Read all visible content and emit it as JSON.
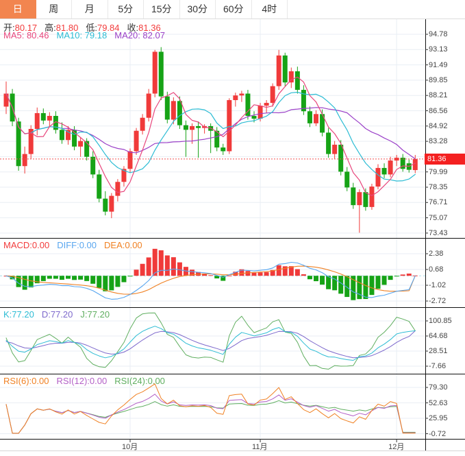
{
  "tabs": {
    "items": [
      {
        "id": "day",
        "label": "日",
        "active": true
      },
      {
        "id": "week",
        "label": "周",
        "active": false
      },
      {
        "id": "month",
        "label": "月",
        "active": false
      },
      {
        "id": "5min",
        "label": "5分",
        "active": false
      },
      {
        "id": "15min",
        "label": "15分",
        "active": false
      },
      {
        "id": "30min",
        "label": "30分",
        "active": false
      },
      {
        "id": "60min",
        "label": "60分",
        "active": false
      },
      {
        "id": "4hour",
        "label": "4时",
        "active": false
      }
    ]
  },
  "colors": {
    "up": "#f03a3a",
    "down": "#16a316",
    "accent_tab": "#f2854f",
    "ma5": "#e8467c",
    "ma10": "#2cbcd4",
    "ma20": "#9b41c8",
    "diff": "#58a6ef",
    "dea": "#f08123",
    "macd_label": "#f23c3c",
    "k": "#2cbcd4",
    "d": "#7d68cc",
    "j": "#5fae5f",
    "rsi6": "#f08123",
    "rsi12": "#b35fc6",
    "rsi24": "#5fae5f",
    "grid": "#e9eef4",
    "pane_border": "#111111",
    "last_price_line": "#f25050",
    "zero_line": "#a5dbe8",
    "badge_bg": "#f42020",
    "axis_text": "#444444",
    "label_text": "#333333"
  },
  "legend": {
    "ohlc": [
      {
        "name": "open",
        "t": "开:",
        "v": "80.17",
        "lc": "#333333",
        "vc": "#f23c3c"
      },
      {
        "name": "high",
        "t": "高:",
        "v": "81.80",
        "lc": "#333333",
        "vc": "#f23c3c"
      },
      {
        "name": "low",
        "t": "低:",
        "v": "79.84",
        "lc": "#333333",
        "vc": "#f23c3c"
      },
      {
        "name": "close",
        "t": "收:",
        "v": "81.36",
        "lc": "#333333",
        "vc": "#f23c3c"
      }
    ],
    "ma": [
      {
        "name": "ma5",
        "t": "MA5:",
        "v": " 80.46",
        "c": "#e8467c"
      },
      {
        "name": "ma10",
        "t": "MA10:",
        "v": " 79.18",
        "c": "#2cbcd4"
      },
      {
        "name": "ma20",
        "t": "MA20:",
        "v": " 82.07",
        "c": "#9b41c8"
      }
    ],
    "macd": [
      {
        "name": "macd",
        "t": "MACD:",
        "v": "0.00",
        "c": "#f23c3c"
      },
      {
        "name": "diff",
        "t": "DIFF:",
        "v": "0.00",
        "c": "#58a6ef"
      },
      {
        "name": "dea",
        "t": "DEA:",
        "v": "0.00",
        "c": "#f08123"
      }
    ],
    "kdj": [
      {
        "name": "k",
        "t": "K:",
        "v": "77.20",
        "c": "#2cbcd4"
      },
      {
        "name": "d",
        "t": "D:",
        "v": "77.20",
        "c": "#7d68cc"
      },
      {
        "name": "j",
        "t": "J:",
        "v": "77.20",
        "c": "#5fae5f"
      }
    ],
    "rsi": [
      {
        "name": "rsi6",
        "t": "RSI(6):",
        "v": "0.00",
        "c": "#f08123"
      },
      {
        "name": "rsi12",
        "t": "RSI(12):",
        "v": "0.00",
        "c": "#b35fc6"
      },
      {
        "name": "rsi24",
        "t": "RSI(24):",
        "v": "0.00",
        "c": "#5fae5f"
      }
    ]
  },
  "main_axis": {
    "labels": [
      {
        "text": "94.78",
        "slot": 0
      },
      {
        "text": "93.13",
        "slot": 1
      },
      {
        "text": "91.49",
        "slot": 2
      },
      {
        "text": "89.85",
        "slot": 3
      },
      {
        "text": "88.21",
        "slot": 4
      },
      {
        "text": "86.56",
        "slot": 5
      },
      {
        "text": "84.92",
        "slot": 6
      },
      {
        "text": "83.28",
        "slot": 7
      },
      {
        "text": "79.99",
        "slot": 9
      },
      {
        "text": "78.35",
        "slot": 10
      },
      {
        "text": "76.71",
        "slot": 11
      },
      {
        "text": "75.07",
        "slot": 12
      },
      {
        "text": "73.43",
        "slot": 13
      }
    ],
    "price_badge": "81.36"
  },
  "panel_axes": {
    "macd": [
      "2.38",
      "0.68",
      "-1.02",
      "-2.72"
    ],
    "kdj": [
      "100.85",
      "64.68",
      "28.51",
      "-7.66"
    ],
    "rsi": [
      "79.30",
      "52.63",
      "25.95",
      "-0.72"
    ]
  },
  "x_axis": {
    "labels": [
      {
        "text": "10月",
        "index": 20
      },
      {
        "text": "11月",
        "index": 41
      },
      {
        "text": "12月",
        "index": 63
      }
    ]
  },
  "chart_data": {
    "type": "candlestick",
    "subpanels": [
      "MACD",
      "KDJ",
      "RSI"
    ],
    "price_range": [
      73.43,
      94.78
    ],
    "last_price": 81.36,
    "last_ohlc": {
      "open": 80.17,
      "high": 81.8,
      "low": 79.84,
      "close": 81.36
    },
    "ma_periods": [
      5,
      10,
      20
    ],
    "ma_last": {
      "ma5": 80.46,
      "ma10": 79.18,
      "ma20": 82.07
    },
    "last_values": {
      "macd": 0,
      "diff": 0,
      "dea": 0,
      "k": 77.2,
      "d": 77.2,
      "j": 77.2,
      "rsi6": 0,
      "rsi12": 0,
      "rsi24": 0
    },
    "candles": [
      [
        87.0,
        89.7,
        86.2,
        88.4
      ],
      [
        88.4,
        88.9,
        84.9,
        85.4
      ],
      [
        85.4,
        85.8,
        80.1,
        80.6
      ],
      [
        80.6,
        82.7,
        79.8,
        81.9
      ],
      [
        81.9,
        85.0,
        81.4,
        84.6
      ],
      [
        84.6,
        86.9,
        83.9,
        86.3
      ],
      [
        86.3,
        86.8,
        85.1,
        85.5
      ],
      [
        85.5,
        86.4,
        84.8,
        86.0
      ],
      [
        86.0,
        86.5,
        84.1,
        84.5
      ],
      [
        84.5,
        85.3,
        83.0,
        83.4
      ],
      [
        83.4,
        84.9,
        82.9,
        84.5
      ],
      [
        84.5,
        84.9,
        82.3,
        82.7
      ],
      [
        82.7,
        83.7,
        81.6,
        83.3
      ],
      [
        83.3,
        83.6,
        81.2,
        81.6
      ],
      [
        81.6,
        82.2,
        79.3,
        79.7
      ],
      [
        79.7,
        80.2,
        76.7,
        77.1
      ],
      [
        77.1,
        77.9,
        75.3,
        75.7
      ],
      [
        75.7,
        77.7,
        75.0,
        77.4
      ],
      [
        77.4,
        79.2,
        76.8,
        78.9
      ],
      [
        78.9,
        80.6,
        78.4,
        80.3
      ],
      [
        80.3,
        82.5,
        79.9,
        82.2
      ],
      [
        82.2,
        84.7,
        81.8,
        84.4
      ],
      [
        84.4,
        86.2,
        84.0,
        85.8
      ],
      [
        85.8,
        88.9,
        85.4,
        88.4
      ],
      [
        88.4,
        93.1,
        88.0,
        92.9
      ],
      [
        92.9,
        93.4,
        87.7,
        88.1
      ],
      [
        88.1,
        88.6,
        85.2,
        85.6
      ],
      [
        85.6,
        88.0,
        85.1,
        87.6
      ],
      [
        87.6,
        88.1,
        84.6,
        85.0
      ],
      [
        85.0,
        85.5,
        81.6,
        84.5
      ],
      [
        84.5,
        85.2,
        83.0,
        84.9
      ],
      [
        84.9,
        85.4,
        81.5,
        84.7
      ],
      [
        84.7,
        85.1,
        84.1,
        84.9
      ],
      [
        84.9,
        85.2,
        82.0,
        84.4
      ],
      [
        84.4,
        84.8,
        82.2,
        82.6
      ],
      [
        82.6,
        83.0,
        81.8,
        82.2
      ],
      [
        82.2,
        87.9,
        81.9,
        87.7
      ],
      [
        87.7,
        88.5,
        87.0,
        88.2
      ],
      [
        88.2,
        88.7,
        87.5,
        88.4
      ],
      [
        88.4,
        88.8,
        85.6,
        86.0
      ],
      [
        86.0,
        86.5,
        85.3,
        85.7
      ],
      [
        85.7,
        87.4,
        85.4,
        87.1
      ],
      [
        87.1,
        87.7,
        86.3,
        87.4
      ],
      [
        87.4,
        89.5,
        87.0,
        89.2
      ],
      [
        89.2,
        93.1,
        88.8,
        92.5
      ],
      [
        92.5,
        92.8,
        89.2,
        89.6
      ],
      [
        89.6,
        91.2,
        89.0,
        90.8
      ],
      [
        90.8,
        91.3,
        88.4,
        88.8
      ],
      [
        88.8,
        89.3,
        86.1,
        86.5
      ],
      [
        86.5,
        87.0,
        84.8,
        85.2
      ],
      [
        85.2,
        86.6,
        84.9,
        86.2
      ],
      [
        86.2,
        86.7,
        83.8,
        84.2
      ],
      [
        84.2,
        84.7,
        81.5,
        81.9
      ],
      [
        81.9,
        83.3,
        81.4,
        82.9
      ],
      [
        82.9,
        83.4,
        79.6,
        80.0
      ],
      [
        80.0,
        80.5,
        77.9,
        78.3
      ],
      [
        78.3,
        78.8,
        76.0,
        76.4
      ],
      [
        76.4,
        78.1,
        73.43,
        77.8
      ],
      [
        77.8,
        78.2,
        75.8,
        76.2
      ],
      [
        76.2,
        78.7,
        75.9,
        78.4
      ],
      [
        78.4,
        80.8,
        78.1,
        80.4
      ],
      [
        80.4,
        80.9,
        79.3,
        79.7
      ],
      [
        79.7,
        81.6,
        79.4,
        81.2
      ],
      [
        81.2,
        81.8,
        80.6,
        81.5
      ],
      [
        81.5,
        81.9,
        80.0,
        80.3
      ],
      [
        80.9,
        81.3,
        79.9,
        80.2
      ],
      [
        80.17,
        81.8,
        79.84,
        81.36
      ]
    ]
  }
}
